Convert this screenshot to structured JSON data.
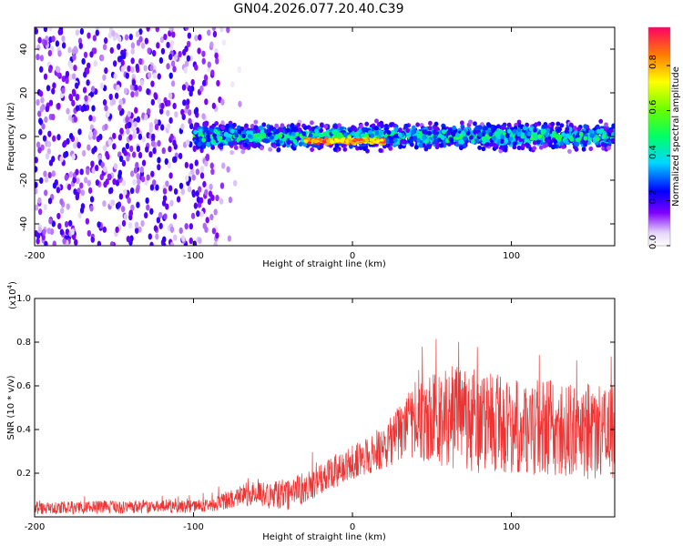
{
  "title": "GN04.2026.077.20.40.C39",
  "chart_data": [
    {
      "type": "heatmap",
      "name": "spectrogram",
      "xlabel": "Height of straight line (km)",
      "ylabel": "Frequency (Hz)",
      "xlim": [
        -200,
        165
      ],
      "ylim": [
        -50,
        50
      ],
      "xticks": [
        -200,
        -100,
        0,
        100
      ],
      "yticks": [
        -40,
        -20,
        0,
        20,
        40
      ],
      "colorbar": {
        "label": "Normalized spectral amplitude",
        "range": [
          0,
          0.97
        ],
        "ticks": [
          0.0,
          0.2,
          0.4,
          0.6,
          0.8
        ],
        "tick_labels": [
          "0.0",
          "0.2",
          "0.4",
          "0.6",
          "0.8"
        ]
      },
      "features": [
        {
          "region": "noise",
          "x_range": [
            -200,
            -70
          ],
          "freq_range": [
            -50,
            50
          ],
          "amplitude": 0.15
        },
        {
          "region": "signal_band",
          "x_range": [
            -100,
            165
          ],
          "center_freq": 0,
          "half_width_hz": 5,
          "amplitude": 0.35
        },
        {
          "region": "peak",
          "x_range": [
            -30,
            20
          ],
          "center_freq": -2,
          "half_width_hz": 1.5,
          "amplitude": 0.9
        }
      ]
    },
    {
      "type": "line",
      "name": "snr",
      "xlabel": "Height of straight line (km)",
      "ylabel": "SNR (10 * v/v)",
      "y_multiplier": "(x10",
      "y_multiplier_exp": "4",
      "y_multiplier_close": ")",
      "xlim": [
        -200,
        165
      ],
      "ylim": [
        0,
        1.0
      ],
      "xticks": [
        -200,
        -100,
        0,
        100
      ],
      "yticks": [
        0.2,
        0.4,
        0.6,
        0.8,
        1.0
      ],
      "ytick_labels": [
        "0.2",
        "0.4",
        "0.6",
        "0.8",
        "1.0"
      ],
      "color": "#ee3333",
      "trend": [
        {
          "x": -200,
          "mean": 0.04,
          "spread": 0.03
        },
        {
          "x": -90,
          "mean": 0.05,
          "spread": 0.03
        },
        {
          "x": -70,
          "mean": 0.1,
          "spread": 0.05
        },
        {
          "x": -40,
          "mean": 0.1,
          "spread": 0.07
        },
        {
          "x": -20,
          "mean": 0.17,
          "spread": 0.07
        },
        {
          "x": 0,
          "mean": 0.25,
          "spread": 0.08
        },
        {
          "x": 20,
          "mean": 0.32,
          "spread": 0.1
        },
        {
          "x": 35,
          "mean": 0.42,
          "spread": 0.15
        },
        {
          "x": 60,
          "mean": 0.45,
          "spread": 0.25
        },
        {
          "x": 100,
          "mean": 0.42,
          "spread": 0.22
        },
        {
          "x": 165,
          "mean": 0.38,
          "spread": 0.22
        }
      ]
    }
  ]
}
